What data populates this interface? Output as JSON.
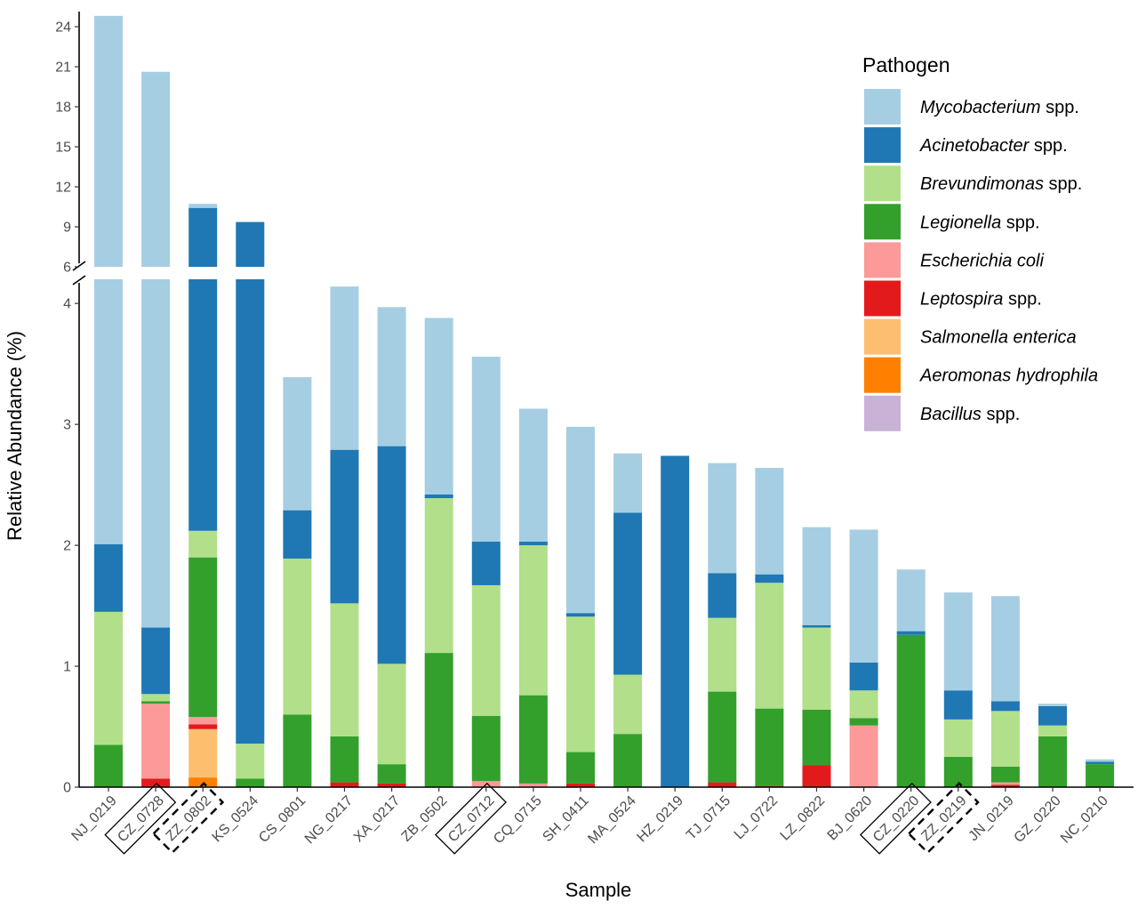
{
  "chart_data": {
    "type": "bar",
    "stacked": true,
    "xlabel": "Sample",
    "ylabel": "Relative Abundance (%)",
    "axis_break": {
      "from": 4.2,
      "to": 6
    },
    "ylim_lower": [
      0,
      4.2
    ],
    "ylim_upper": [
      6,
      25
    ],
    "yticks_lower": [
      "0",
      "1",
      "2",
      "3",
      "4"
    ],
    "yticks_upper": [
      "6",
      "9",
      "12",
      "15",
      "18",
      "21",
      "24"
    ],
    "legend": {
      "title": "Pathogen",
      "position": "top-right",
      "entries": [
        {
          "italic": "Mycobacterium",
          "suffix": " spp."
        },
        {
          "italic": "Acinetobacter",
          "suffix": " spp."
        },
        {
          "italic": "Brevundimonas",
          "suffix": " spp."
        },
        {
          "italic": "Legionella",
          "suffix": " spp."
        },
        {
          "italic": "Escherichia coli",
          "suffix": ""
        },
        {
          "italic": "Leptospira",
          "suffix": " spp."
        },
        {
          "italic": "Salmonella enterica",
          "suffix": ""
        },
        {
          "italic": "Aeromonas hydrophila",
          "suffix": ""
        },
        {
          "italic": "Bacillus",
          "suffix": " spp."
        }
      ]
    },
    "colors": [
      "#a6cee3",
      "#1f78b4",
      "#b2df8a",
      "#33a02c",
      "#fb9a99",
      "#e31a1c",
      "#fdbf6f",
      "#ff7f00",
      "#cab2d6"
    ],
    "stack_order_bottom_to_top": [
      "Aeromonas hydrophila",
      "Salmonella enterica",
      "Leptospira",
      "Escherichia coli",
      "Legionella",
      "Brevundimonas",
      "Acinetobacter",
      "Mycobacterium",
      "Bacillus"
    ],
    "categories": [
      "NJ_0219",
      "CZ_0728",
      "ZZ_0802",
      "KS_0524",
      "CS_0801",
      "NG_0217",
      "XA_0217",
      "ZB_0502",
      "CZ_0712",
      "CQ_0715",
      "SH_0411",
      "MA_0524",
      "HZ_0219",
      "TJ_0715",
      "LJ_0722",
      "LZ_0822",
      "BJ_0620",
      "CZ_0220",
      "ZZ_0219",
      "JN_0219",
      "GZ_0220",
      "NC_0210"
    ],
    "category_box": [
      "none",
      "solid",
      "dashed",
      "none",
      "none",
      "none",
      "none",
      "none",
      "solid",
      "none",
      "none",
      "none",
      "none",
      "none",
      "none",
      "none",
      "none",
      "solid",
      "dashed",
      "none",
      "none",
      "none"
    ],
    "series": [
      {
        "name": "Aeromonas hydrophila",
        "values": [
          0,
          0,
          0.08,
          0,
          0,
          0,
          0,
          0,
          0,
          0,
          0,
          0,
          0,
          0,
          0,
          0,
          0,
          0,
          0,
          0,
          0,
          0
        ]
      },
      {
        "name": "Salmonella enterica",
        "values": [
          0,
          0,
          0.4,
          0,
          0,
          0,
          0,
          0,
          0,
          0,
          0,
          0,
          0,
          0,
          0,
          0,
          0,
          0,
          0,
          0,
          0,
          0
        ]
      },
      {
        "name": "Leptospira",
        "values": [
          0,
          0.07,
          0.04,
          0,
          0,
          0.04,
          0.03,
          0,
          0,
          0,
          0.03,
          0,
          0,
          0.04,
          0.01,
          0.18,
          0,
          0,
          0,
          0.02,
          0,
          0
        ]
      },
      {
        "name": "Escherichia coli",
        "values": [
          0,
          0.62,
          0.06,
          0,
          0,
          0,
          0,
          0,
          0.05,
          0.03,
          0,
          0,
          0,
          0,
          0,
          0,
          0.51,
          0,
          0,
          0.02,
          0,
          0
        ]
      },
      {
        "name": "Legionella",
        "values": [
          0.35,
          0.02,
          1.32,
          0.07,
          0.6,
          0.38,
          0.16,
          1.11,
          0.54,
          0.73,
          0.26,
          0.44,
          0,
          0.75,
          0.64,
          0.46,
          0.06,
          1.26,
          0.25,
          0.13,
          0.42,
          0.19
        ]
      },
      {
        "name": "Brevundimonas",
        "values": [
          1.1,
          0.06,
          0.22,
          0.29,
          1.29,
          1.1,
          0.83,
          1.28,
          1.08,
          1.24,
          1.12,
          0.49,
          0,
          0.61,
          1.04,
          0.68,
          0.23,
          0,
          0.31,
          0.46,
          0.09,
          0
        ]
      },
      {
        "name": "Acinetobacter",
        "values": [
          0.56,
          0.55,
          8.3,
          9.0,
          0.4,
          1.27,
          1.8,
          0.03,
          0.36,
          0.03,
          0.03,
          1.34,
          2.74,
          0.37,
          0.07,
          0.02,
          0.23,
          0.03,
          0.24,
          0.08,
          0.16,
          0.02
        ]
      },
      {
        "name": "Mycobacterium",
        "values": [
          22.8,
          19.3,
          0.3,
          0,
          1.1,
          1.35,
          1.15,
          1.46,
          1.53,
          1.1,
          1.54,
          0.49,
          0,
          0.91,
          0.88,
          0.81,
          1.1,
          0.51,
          0.81,
          0.87,
          0.02,
          0.02
        ]
      },
      {
        "name": "Bacillus",
        "values": [
          0,
          0,
          0,
          0,
          0,
          0,
          0,
          0,
          0,
          0,
          0,
          0,
          0,
          0,
          0,
          0,
          0,
          0,
          0,
          0,
          0,
          0
        ]
      }
    ]
  }
}
